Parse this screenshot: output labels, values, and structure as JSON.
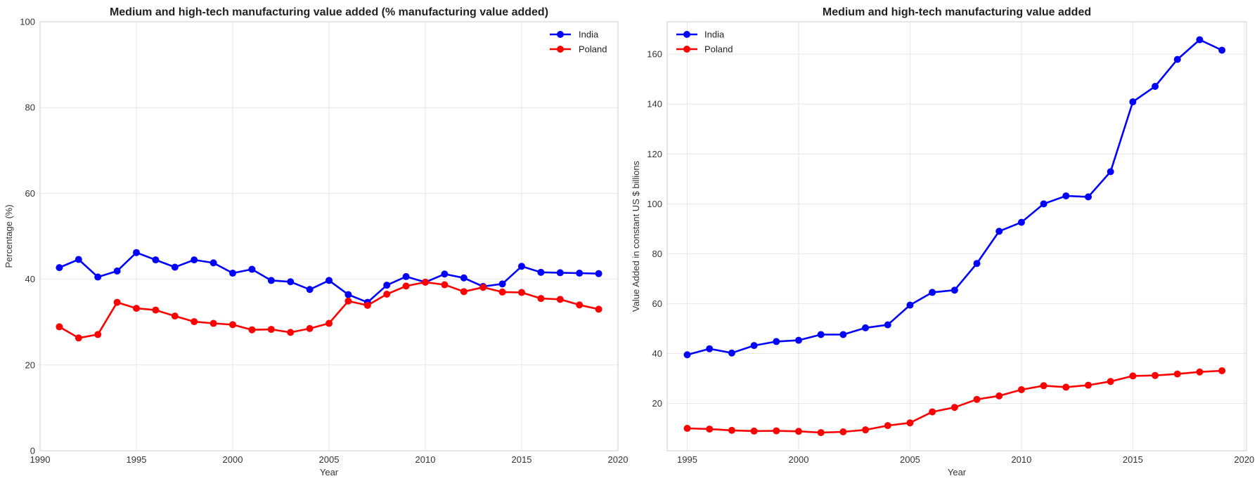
{
  "chart_data": [
    {
      "type": "line",
      "title": "Medium and high-tech manufacturing value added (% manufacturing value added)",
      "xlabel": "Year",
      "ylabel": "Percentage (%)",
      "xlim": [
        1990,
        2020
      ],
      "ylim": [
        0,
        100
      ],
      "xticks": [
        1990,
        1995,
        2000,
        2005,
        2010,
        2015,
        2020
      ],
      "yticks": [
        0,
        20,
        40,
        60,
        80,
        100
      ],
      "grid": true,
      "legend_position": "top-right",
      "x": [
        1991,
        1992,
        1993,
        1994,
        1995,
        1996,
        1997,
        1998,
        1999,
        2000,
        2001,
        2002,
        2003,
        2004,
        2005,
        2006,
        2007,
        2008,
        2009,
        2010,
        2011,
        2012,
        2013,
        2014,
        2015,
        2016,
        2017,
        2018,
        2019
      ],
      "series": [
        {
          "name": "India",
          "color": "#0000ff",
          "values": [
            42.7,
            44.6,
            40.5,
            41.9,
            46.2,
            44.5,
            42.8,
            44.5,
            43.8,
            41.4,
            42.3,
            39.7,
            39.4,
            37.6,
            39.7,
            36.4,
            34.6,
            38.6,
            40.6,
            39.3,
            41.2,
            40.3,
            38.3,
            38.9,
            43.0,
            41.6,
            41.5,
            41.4,
            41.3
          ]
        },
        {
          "name": "Poland",
          "color": "#ff0000",
          "values": [
            28.9,
            26.3,
            27.1,
            34.6,
            33.2,
            32.8,
            31.4,
            30.1,
            29.7,
            29.4,
            28.2,
            28.3,
            27.6,
            28.5,
            29.7,
            34.9,
            33.9,
            36.5,
            38.4,
            39.3,
            38.7,
            37.1,
            38.1,
            37.0,
            36.9,
            35.5,
            35.3,
            34.0,
            33.0
          ]
        }
      ]
    },
    {
      "type": "line",
      "title": "Medium and high-tech manufacturing value added",
      "xlabel": "Year",
      "ylabel": "Value Added in constant US $ billions",
      "xlim": [
        1994.1,
        2020.1
      ],
      "ylim": [
        1.0,
        173.0
      ],
      "xticks": [
        1995,
        2000,
        2005,
        2010,
        2015,
        2020
      ],
      "yticks": [
        20,
        40,
        60,
        80,
        100,
        120,
        140,
        160
      ],
      "grid": true,
      "legend_position": "top-left",
      "x": [
        1995,
        1996,
        1997,
        1998,
        1999,
        2000,
        2001,
        2002,
        2003,
        2004,
        2005,
        2006,
        2007,
        2008,
        2009,
        2010,
        2011,
        2012,
        2013,
        2014,
        2015,
        2016,
        2017,
        2018,
        2019
      ],
      "series": [
        {
          "name": "India",
          "color": "#0000ff",
          "values": [
            39.5,
            41.9,
            40.2,
            43.2,
            44.8,
            45.3,
            47.6,
            47.6,
            50.3,
            51.5,
            59.4,
            64.5,
            65.4,
            76.1,
            89.0,
            92.6,
            100.0,
            103.2,
            102.8,
            112.9,
            140.9,
            147.1,
            157.9,
            165.8,
            161.6
          ]
        },
        {
          "name": "Poland",
          "color": "#ff0000",
          "values": [
            10.0,
            9.7,
            9.2,
            8.9,
            9.0,
            8.8,
            8.3,
            8.6,
            9.4,
            11.1,
            12.2,
            16.6,
            18.4,
            21.6,
            23.0,
            25.5,
            27.1,
            26.5,
            27.3,
            28.8,
            31.0,
            31.2,
            31.8,
            32.6,
            33.1
          ]
        }
      ]
    }
  ]
}
